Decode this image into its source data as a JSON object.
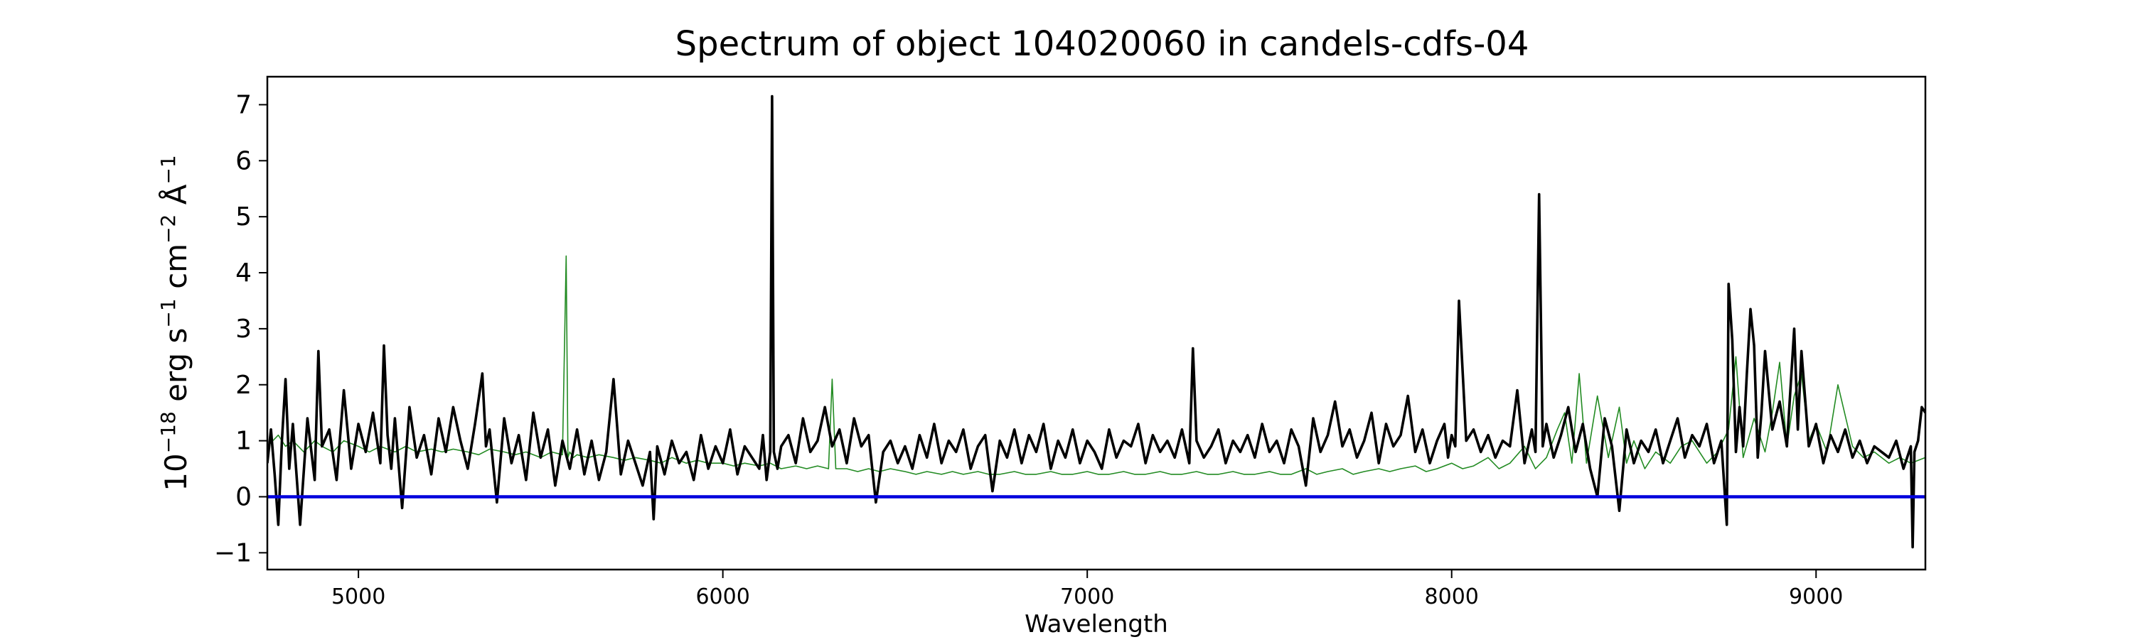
{
  "chart_data": {
    "type": "line",
    "title": "Spectrum of object 104020060 in candels-cdfs-04",
    "xlabel": "Wavelength",
    "ylabel": {
      "base": "10",
      "exp1": "−18",
      "text1": " erg s",
      "exp2": "−1",
      "text2": " cm",
      "exp3": "−2",
      "text3": " Å",
      "exp4": "−1"
    },
    "xlim": [
      4750,
      9300
    ],
    "ylim": [
      -1.3,
      7.5
    ],
    "xticks": [
      5000,
      6000,
      7000,
      8000,
      9000
    ],
    "xtick_labels": [
      "5000",
      "6000",
      "7000",
      "8000",
      "9000"
    ],
    "yticks": [
      -1,
      0,
      1,
      2,
      3,
      4,
      5,
      6,
      7
    ],
    "ytick_labels": [
      "−1",
      "0",
      "1",
      "2",
      "3",
      "4",
      "5",
      "6",
      "7"
    ],
    "grid": false,
    "colors": {
      "flux": "#000000",
      "error": "#228b22",
      "zero": "#0000dd"
    },
    "series": [
      {
        "role": "flux",
        "x": [
          4750,
          4760,
          4770,
          4780,
          4790,
          4800,
          4810,
          4820,
          4840,
          4860,
          4880,
          4890,
          4900,
          4920,
          4940,
          4960,
          4980,
          5000,
          5020,
          5040,
          5060,
          5070,
          5080,
          5090,
          5100,
          5120,
          5140,
          5160,
          5180,
          5200,
          5220,
          5240,
          5260,
          5280,
          5300,
          5320,
          5340,
          5350,
          5360,
          5380,
          5400,
          5420,
          5440,
          5460,
          5480,
          5500,
          5520,
          5540,
          5560,
          5580,
          5600,
          5620,
          5640,
          5660,
          5680,
          5700,
          5720,
          5740,
          5760,
          5780,
          5800,
          5810,
          5820,
          5840,
          5860,
          5880,
          5900,
          5920,
          5940,
          5960,
          5980,
          6000,
          6020,
          6040,
          6060,
          6080,
          6100,
          6110,
          6120,
          6130,
          6135,
          6140,
          6150,
          6160,
          6180,
          6200,
          6220,
          6240,
          6260,
          6280,
          6300,
          6320,
          6340,
          6360,
          6380,
          6400,
          6420,
          6440,
          6460,
          6480,
          6500,
          6520,
          6540,
          6560,
          6580,
          6600,
          6620,
          6640,
          6660,
          6680,
          6700,
          6720,
          6740,
          6760,
          6780,
          6800,
          6820,
          6840,
          6860,
          6880,
          6900,
          6920,
          6940,
          6960,
          6980,
          7000,
          7020,
          7040,
          7060,
          7080,
          7100,
          7120,
          7140,
          7160,
          7180,
          7200,
          7220,
          7240,
          7260,
          7270,
          7280,
          7290,
          7300,
          7320,
          7340,
          7360,
          7380,
          7400,
          7420,
          7440,
          7460,
          7480,
          7500,
          7520,
          7540,
          7560,
          7580,
          7600,
          7620,
          7640,
          7660,
          7680,
          7700,
          7720,
          7740,
          7760,
          7780,
          7800,
          7820,
          7840,
          7860,
          7880,
          7900,
          7920,
          7940,
          7960,
          7980,
          7990,
          8000,
          8010,
          8020,
          8040,
          8060,
          8080,
          8100,
          8120,
          8140,
          8160,
          8180,
          8200,
          8220,
          8230,
          8240,
          8250,
          8260,
          8280,
          8300,
          8320,
          8340,
          8360,
          8380,
          8400,
          8420,
          8440,
          8460,
          8480,
          8500,
          8520,
          8540,
          8560,
          8580,
          8600,
          8620,
          8640,
          8660,
          8680,
          8700,
          8720,
          8740,
          8755,
          8760,
          8770,
          8780,
          8790,
          8800,
          8810,
          8820,
          8830,
          8840,
          8850,
          8860,
          8880,
          8900,
          8920,
          8940,
          8950,
          8960,
          8980,
          9000,
          9020,
          9040,
          9060,
          9080,
          9100,
          9120,
          9140,
          9160,
          9180,
          9200,
          9220,
          9240,
          9260,
          9265,
          9270,
          9280,
          9290,
          9300
        ],
        "y": [
          0.6,
          1.2,
          0.4,
          -0.5,
          1.0,
          2.1,
          0.5,
          1.3,
          -0.5,
          1.4,
          0.3,
          2.6,
          0.9,
          1.2,
          0.3,
          1.9,
          0.5,
          1.3,
          0.8,
          1.5,
          0.6,
          2.7,
          1.1,
          0.5,
          1.4,
          -0.2,
          1.6,
          0.7,
          1.1,
          0.4,
          1.4,
          0.8,
          1.6,
          1.0,
          0.5,
          1.3,
          2.2,
          0.9,
          1.2,
          -0.1,
          1.4,
          0.6,
          1.1,
          0.3,
          1.5,
          0.7,
          1.2,
          0.2,
          1.0,
          0.5,
          1.2,
          0.4,
          1.0,
          0.3,
          0.8,
          2.1,
          0.4,
          1.0,
          0.6,
          0.2,
          0.8,
          -0.4,
          0.9,
          0.4,
          1.0,
          0.6,
          0.8,
          0.3,
          1.1,
          0.5,
          0.9,
          0.6,
          1.2,
          0.4,
          0.9,
          0.7,
          0.5,
          1.1,
          0.3,
          0.8,
          7.15,
          0.8,
          0.5,
          0.9,
          1.1,
          0.6,
          1.4,
          0.8,
          1.0,
          1.6,
          0.9,
          1.2,
          0.6,
          1.4,
          0.9,
          1.1,
          -0.1,
          0.8,
          1.0,
          0.6,
          0.9,
          0.5,
          1.1,
          0.7,
          1.3,
          0.6,
          1.0,
          0.8,
          1.2,
          0.5,
          0.9,
          1.1,
          0.1,
          1.0,
          0.7,
          1.2,
          0.6,
          1.1,
          0.8,
          1.3,
          0.5,
          1.0,
          0.7,
          1.2,
          0.6,
          1.0,
          0.8,
          0.5,
          1.2,
          0.7,
          1.0,
          0.9,
          1.3,
          0.6,
          1.1,
          0.8,
          1.0,
          0.7,
          1.2,
          0.9,
          0.6,
          2.65,
          1.0,
          0.7,
          0.9,
          1.2,
          0.6,
          1.0,
          0.8,
          1.1,
          0.7,
          1.3,
          0.8,
          1.0,
          0.6,
          1.2,
          0.9,
          0.2,
          1.4,
          0.8,
          1.1,
          1.7,
          0.9,
          1.2,
          0.7,
          1.0,
          1.5,
          0.6,
          1.3,
          0.9,
          1.1,
          1.8,
          0.8,
          1.2,
          0.6,
          1.0,
          1.3,
          0.7,
          1.1,
          0.9,
          3.5,
          1.0,
          1.2,
          0.8,
          1.1,
          0.7,
          1.0,
          0.9,
          1.9,
          0.6,
          1.2,
          0.8,
          5.4,
          0.9,
          1.3,
          0.7,
          1.1,
          1.6,
          0.8,
          1.3,
          0.5,
          0.0,
          1.4,
          0.9,
          -0.25,
          1.2,
          0.6,
          1.0,
          0.8,
          1.2,
          0.6,
          1.0,
          1.4,
          0.7,
          1.1,
          0.9,
          1.3,
          0.6,
          1.0,
          -0.5,
          3.8,
          2.8,
          0.8,
          1.6,
          0.9,
          2.2,
          3.35,
          2.7,
          0.7,
          1.5,
          2.6,
          1.2,
          1.7,
          0.9,
          3.0,
          1.2,
          2.6,
          0.9,
          1.3,
          0.6,
          1.1,
          0.8,
          1.2,
          0.7,
          1.0,
          0.6,
          0.9,
          0.8,
          0.7,
          1.0,
          0.5,
          0.9,
          -0.9,
          0.8,
          1.0,
          1.6,
          1.5
        ]
      },
      {
        "role": "error",
        "x": [
          4750,
          4780,
          4800,
          4820,
          4850,
          4880,
          4900,
          4930,
          4960,
          5000,
          5030,
          5060,
          5100,
          5130,
          5160,
          5200,
          5230,
          5260,
          5300,
          5330,
          5360,
          5400,
          5430,
          5460,
          5500,
          5530,
          5560,
          5570,
          5575,
          5580,
          5590,
          5600,
          5630,
          5660,
          5700,
          5730,
          5760,
          5800,
          5830,
          5860,
          5900,
          5930,
          5960,
          6000,
          6030,
          6060,
          6100,
          6130,
          6160,
          6200,
          6230,
          6260,
          6290,
          6300,
          6310,
          6340,
          6370,
          6400,
          6430,
          6460,
          6500,
          6530,
          6560,
          6600,
          6630,
          6660,
          6700,
          6730,
          6760,
          6800,
          6830,
          6860,
          6900,
          6930,
          6960,
          7000,
          7030,
          7060,
          7100,
          7130,
          7160,
          7200,
          7230,
          7260,
          7300,
          7330,
          7360,
          7400,
          7430,
          7460,
          7500,
          7530,
          7560,
          7600,
          7630,
          7660,
          7700,
          7730,
          7760,
          7800,
          7830,
          7860,
          7900,
          7930,
          7960,
          8000,
          8030,
          8060,
          8100,
          8130,
          8160,
          8200,
          8230,
          8260,
          8290,
          8310,
          8330,
          8350,
          8370,
          8400,
          8430,
          8460,
          8480,
          8500,
          8530,
          8560,
          8600,
          8630,
          8660,
          8700,
          8730,
          8760,
          8780,
          8800,
          8830,
          8860,
          8880,
          8900,
          8920,
          8940,
          8960,
          8980,
          9000,
          9030,
          9060,
          9100,
          9130,
          9160,
          9200,
          9230,
          9260,
          9300
        ],
        "y": [
          0.9,
          1.1,
          0.9,
          1.0,
          0.8,
          1.0,
          0.9,
          0.8,
          1.0,
          0.9,
          0.8,
          0.9,
          0.8,
          0.9,
          0.8,
          0.85,
          0.8,
          0.85,
          0.8,
          0.75,
          0.85,
          0.8,
          0.75,
          0.8,
          0.7,
          0.8,
          0.75,
          4.3,
          0.7,
          0.8,
          0.7,
          0.75,
          0.7,
          0.75,
          0.7,
          0.65,
          0.7,
          0.65,
          0.6,
          0.7,
          0.6,
          0.65,
          0.6,
          0.6,
          0.55,
          0.6,
          0.55,
          0.6,
          0.5,
          0.55,
          0.5,
          0.55,
          0.5,
          2.1,
          0.5,
          0.5,
          0.45,
          0.5,
          0.45,
          0.5,
          0.45,
          0.4,
          0.45,
          0.4,
          0.45,
          0.4,
          0.45,
          0.4,
          0.4,
          0.45,
          0.4,
          0.4,
          0.45,
          0.4,
          0.4,
          0.45,
          0.4,
          0.4,
          0.45,
          0.4,
          0.4,
          0.45,
          0.4,
          0.4,
          0.45,
          0.4,
          0.4,
          0.45,
          0.4,
          0.4,
          0.45,
          0.4,
          0.4,
          0.5,
          0.4,
          0.45,
          0.5,
          0.4,
          0.45,
          0.5,
          0.45,
          0.5,
          0.55,
          0.45,
          0.5,
          0.6,
          0.5,
          0.55,
          0.7,
          0.5,
          0.6,
          0.9,
          0.5,
          0.7,
          1.2,
          1.5,
          0.6,
          2.2,
          0.6,
          1.8,
          0.7,
          1.6,
          0.6,
          1.0,
          0.5,
          0.8,
          0.6,
          0.9,
          1.0,
          0.6,
          0.8,
          1.2,
          2.5,
          0.7,
          1.4,
          0.8,
          1.5,
          2.4,
          0.9,
          1.8,
          2.2,
          1.0,
          1.3,
          0.8,
          2.0,
          0.9,
          0.7,
          0.8,
          0.6,
          0.7,
          0.6,
          0.7
        ]
      },
      {
        "role": "zero",
        "x": [
          4750,
          9300
        ],
        "y": [
          0,
          0
        ]
      }
    ]
  }
}
